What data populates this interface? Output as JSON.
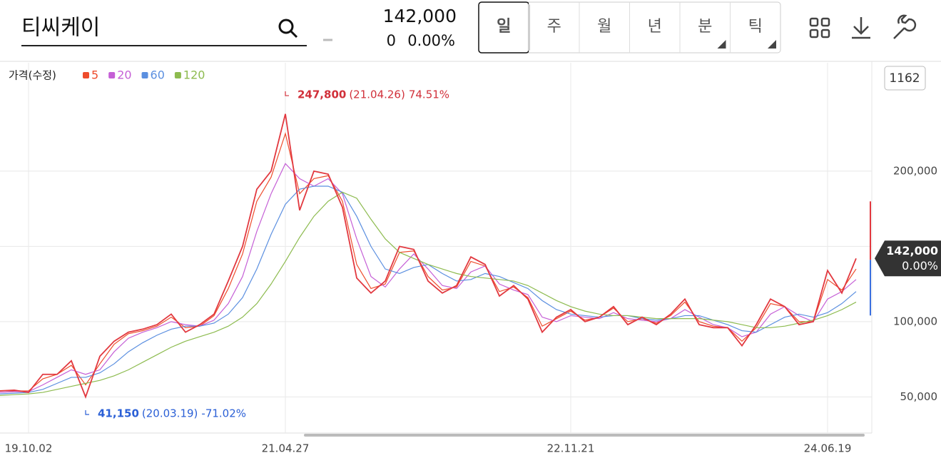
{
  "header": {
    "search": "티씨케이",
    "price": "142,000",
    "change": "0",
    "change_pct": "0.00%",
    "tabs": [
      "일",
      "주",
      "월",
      "년",
      "분",
      "틱"
    ],
    "count": "1162"
  },
  "chart_data": {
    "type": "line",
    "legend_title": "가격(수정)",
    "categories": [
      null,
      null,
      "19.10.02",
      null,
      null,
      null,
      null,
      null,
      null,
      null,
      null,
      null,
      null,
      null,
      null,
      null,
      null,
      null,
      null,
      null,
      "21.04.27",
      null,
      null,
      null,
      null,
      null,
      null,
      null,
      null,
      null,
      null,
      null,
      null,
      null,
      null,
      null,
      null,
      null,
      null,
      null,
      "22.11.21",
      null,
      null,
      null,
      null,
      null,
      null,
      null,
      null,
      null,
      null,
      null,
      null,
      null,
      null,
      null,
      null,
      null,
      "24.06.19",
      null,
      null
    ],
    "values": [
      54000,
      54500,
      53000,
      65000,
      65000,
      74000,
      50000,
      77000,
      87000,
      93000,
      95000,
      98000,
      105000,
      93000,
      98000,
      105000,
      127000,
      150000,
      188000,
      200000,
      238000,
      174000,
      200000,
      198000,
      176000,
      129000,
      119000,
      127000,
      150000,
      148000,
      127000,
      119000,
      124000,
      143000,
      138000,
      117000,
      124000,
      115000,
      93000,
      103000,
      108000,
      100000,
      103000,
      110000,
      98000,
      103000,
      98000,
      105000,
      115000,
      98000,
      96000,
      96000,
      84000,
      98000,
      115000,
      110000,
      98000,
      100000,
      134000,
      119000,
      142000
    ],
    "color": "#e2383f",
    "series": [
      {
        "name": "5",
        "color": "#ee4c2c",
        "values": [
          54000,
          54000,
          54000,
          62000,
          65000,
          71000,
          58000,
          72000,
          85000,
          92000,
          94000,
          97000,
          103000,
          96000,
          97000,
          104000,
          122000,
          145000,
          180000,
          196000,
          225000,
          185000,
          195000,
          197000,
          180000,
          138000,
          122000,
          125000,
          146000,
          147000,
          130000,
          121000,
          123000,
          140000,
          137000,
          120000,
          123000,
          116000,
          97000,
          102000,
          107000,
          101000,
          103000,
          109000,
          100000,
          102000,
          99000,
          104000,
          113000,
          100000,
          97000,
          96000,
          87000,
          96000,
          112000,
          110000,
          100000,
          100000,
          128000,
          121000,
          135000
        ]
      },
      {
        "name": "20",
        "color": "#c55fd6",
        "values": [
          53000,
          53500,
          53500,
          58000,
          63000,
          68000,
          65000,
          68000,
          80000,
          89000,
          93000,
          96000,
          100000,
          98000,
          97000,
          101000,
          112000,
          130000,
          160000,
          185000,
          205000,
          195000,
          190000,
          195000,
          185000,
          155000,
          130000,
          123000,
          135000,
          145000,
          135000,
          124000,
          122000,
          133000,
          137000,
          125000,
          121000,
          118000,
          103000,
          100000,
          104000,
          103000,
          102000,
          106000,
          102000,
          101000,
          100000,
          102000,
          108000,
          103000,
          98000,
          96000,
          90000,
          93000,
          105000,
          110000,
          104000,
          100000,
          115000,
          120000,
          128000
        ]
      },
      {
        "name": "60",
        "color": "#5b8fe0",
        "values": [
          52000,
          52500,
          53000,
          55000,
          59000,
          63000,
          63000,
          66000,
          72000,
          80000,
          86000,
          91000,
          95000,
          97000,
          97000,
          99000,
          105000,
          116000,
          135000,
          158000,
          178000,
          188000,
          190000,
          190000,
          186000,
          170000,
          150000,
          135000,
          132000,
          136000,
          138000,
          132000,
          127000,
          128000,
          132000,
          130000,
          126000,
          122000,
          114000,
          108000,
          105000,
          104000,
          103000,
          104000,
          104000,
          102000,
          101000,
          102000,
          104000,
          104000,
          101000,
          98000,
          94000,
          93000,
          98000,
          103000,
          105000,
          103000,
          106000,
          112000,
          120000
        ]
      },
      {
        "name": "120",
        "color": "#8dbb4f",
        "values": [
          51000,
          51500,
          52000,
          53000,
          55000,
          57000,
          59000,
          61000,
          64000,
          68000,
          73000,
          78000,
          83000,
          87000,
          90000,
          93000,
          97000,
          103000,
          112000,
          125000,
          140000,
          156000,
          170000,
          180000,
          186000,
          182000,
          168000,
          155000,
          146000,
          142000,
          138000,
          135000,
          132000,
          130000,
          129000,
          128000,
          127000,
          124000,
          119000,
          114000,
          110000,
          107000,
          105000,
          104000,
          104000,
          103000,
          102000,
          102000,
          102000,
          102000,
          101000,
          100000,
          98000,
          96000,
          96000,
          97000,
          99000,
          101000,
          104000,
          108000,
          113000
        ]
      }
    ],
    "ylim": [
      26000,
      272000
    ],
    "yticks": [
      {
        "value": 50000,
        "label": "50,000"
      },
      {
        "value": 100000,
        "label": "100,000"
      },
      {
        "value": 200000,
        "label": "200,000"
      }
    ],
    "yticks_unlabeled": [
      150000
    ],
    "grid": true,
    "high": {
      "index": 20,
      "value": 247800,
      "label": "247,800",
      "date": "(21.04.26)",
      "change": "74.51%"
    },
    "low": {
      "index": 6,
      "value": 41150,
      "label": "41,150",
      "date": "(20.03.19)",
      "change": "-71.02%"
    },
    "last": {
      "value": 142000,
      "label": "142,000",
      "change": "0.00%"
    }
  }
}
